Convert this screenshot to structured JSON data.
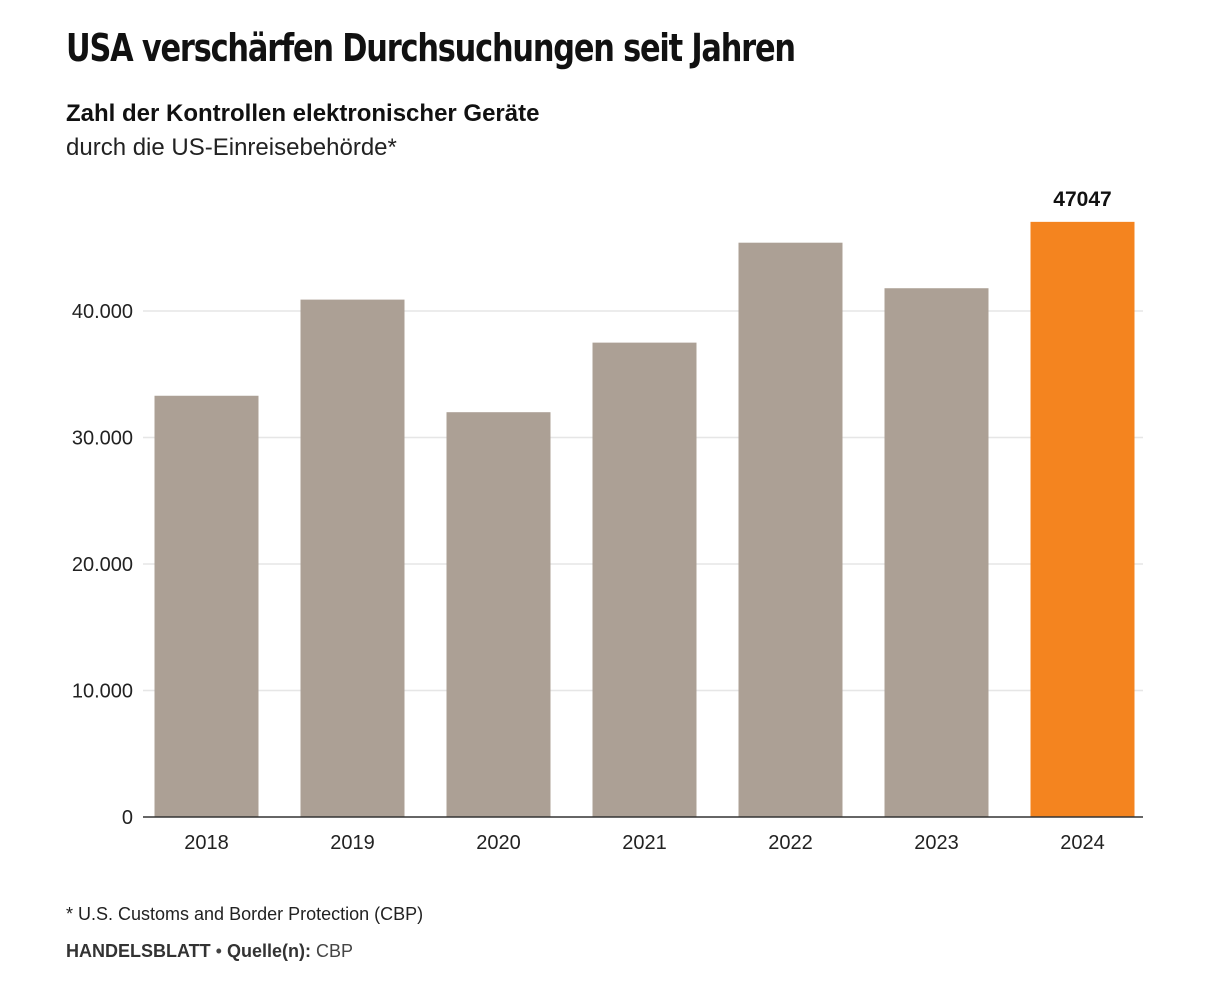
{
  "header": {
    "title": "USA verschärfen Durchsuchungen seit Jahren",
    "subtitle": "Zahl der Kontrollen elektronischer Geräte",
    "subtitle2": "durch die US-Einreisebehörde*"
  },
  "footer": {
    "footnote": "* U.S. Customs and Border Protection (CBP)",
    "brand": "HANDELSBLATT",
    "separator": "•",
    "source_label": "Quelle(n):",
    "source_value": "CBP"
  },
  "colors": {
    "bar": "#aca095",
    "highlight": "#f4841f",
    "grid": "#e6e6e6",
    "axis": "#333333"
  },
  "chart_data": {
    "type": "bar",
    "title": "USA verschärfen Durchsuchungen seit Jahren",
    "subtitle": "Zahl der Kontrollen elektronischer Geräte",
    "categories": [
      "2018",
      "2019",
      "2020",
      "2021",
      "2022",
      "2023",
      "2024"
    ],
    "values": [
      33300,
      40900,
      32000,
      37500,
      45400,
      41800,
      47047
    ],
    "highlight_index": 6,
    "data_labels": [
      {
        "category": "2024",
        "text": "47047"
      }
    ],
    "ylim": [
      0,
      50000
    ],
    "yticks": [
      0,
      10000,
      20000,
      30000,
      40000
    ],
    "ytick_labels": [
      "0",
      "10.000",
      "20.000",
      "30.000",
      "40.000"
    ],
    "grid": true,
    "legend": "none"
  }
}
